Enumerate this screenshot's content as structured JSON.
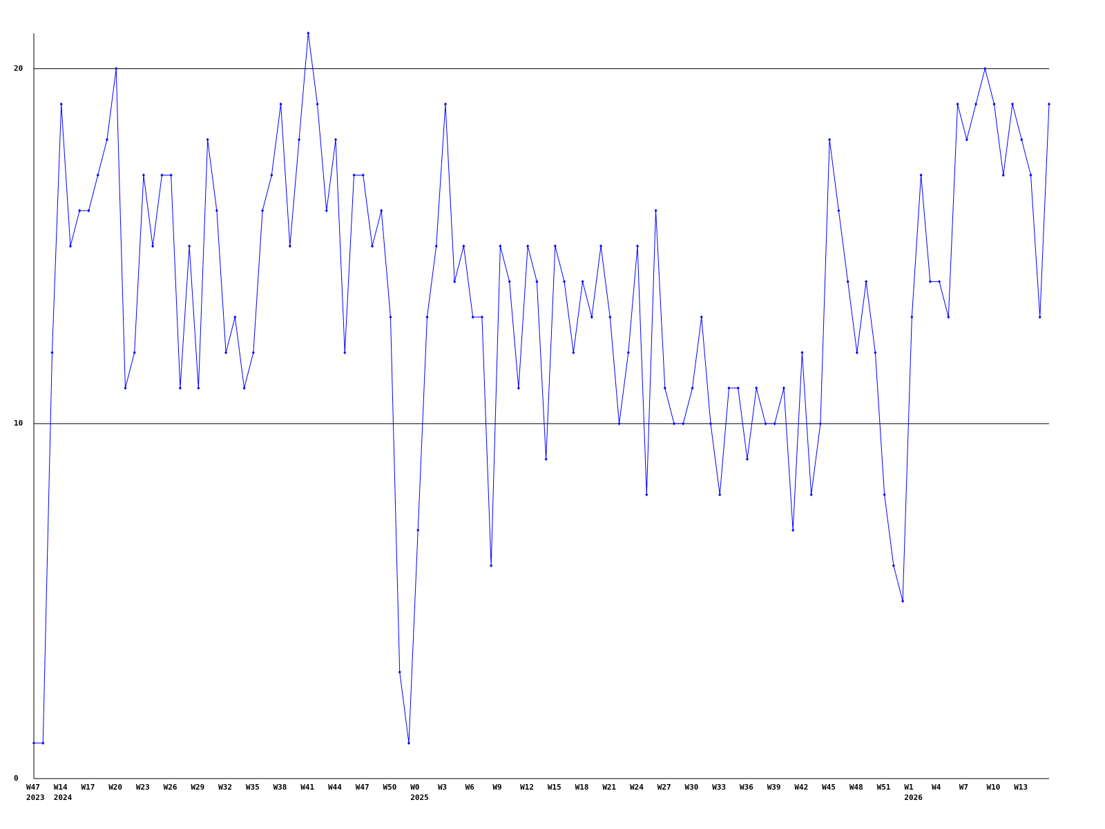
{
  "chart_data": {
    "type": "line",
    "categories": [
      "W47",
      null,
      null,
      "W14",
      null,
      null,
      "W17",
      null,
      null,
      "W20",
      null,
      null,
      "W23",
      null,
      null,
      "W26",
      null,
      null,
      "W29",
      null,
      null,
      "W32",
      null,
      null,
      "W35",
      null,
      null,
      "W38",
      null,
      null,
      "W41",
      null,
      null,
      "W44",
      null,
      null,
      "W47",
      null,
      null,
      "W50",
      null,
      null,
      "W0",
      null,
      null,
      "W3",
      null,
      null,
      "W6",
      null,
      null,
      "W9",
      null,
      null,
      "W12",
      null,
      null,
      "W15",
      null,
      null,
      "W18",
      null,
      null,
      "W21",
      null,
      null,
      "W24",
      null,
      null,
      "W27",
      null,
      null,
      "W30",
      null,
      null,
      "W33",
      null,
      null,
      "W36",
      null,
      null,
      "W39",
      null,
      null,
      "W42",
      null,
      null,
      "W45",
      null,
      null,
      "W48",
      null,
      null,
      "W51",
      null,
      null,
      "W1",
      null,
      null,
      "W4",
      null,
      null,
      "W7",
      null,
      null,
      "W10",
      null,
      null,
      "W13",
      null,
      null,
      null
    ],
    "category_years": [
      "2023",
      null,
      null,
      "2024",
      null,
      null,
      null,
      null,
      null,
      null,
      null,
      null,
      null,
      null,
      null,
      null,
      null,
      null,
      null,
      null,
      null,
      null,
      null,
      null,
      null,
      null,
      null,
      null,
      null,
      null,
      null,
      null,
      null,
      null,
      null,
      null,
      null,
      null,
      null,
      null,
      null,
      null,
      "2025",
      null,
      null,
      null,
      null,
      null,
      null,
      null,
      null,
      null,
      null,
      null,
      null,
      null,
      null,
      null,
      null,
      null,
      null,
      null,
      null,
      null,
      null,
      null,
      null,
      null,
      null,
      null,
      null,
      null,
      null,
      null,
      null,
      null,
      null,
      null,
      null,
      null,
      null,
      null,
      null,
      null,
      null,
      null,
      null,
      null,
      null,
      null,
      null,
      null,
      null,
      null,
      null,
      null,
      "2026",
      null,
      null,
      null,
      null,
      null,
      null,
      null,
      null,
      null,
      null,
      null,
      null,
      null,
      null,
      null
    ],
    "series": [
      {
        "color": "#0000ff",
        "values": [
          1,
          1,
          12,
          19,
          15,
          16,
          16,
          17,
          18,
          20,
          11,
          12,
          17,
          15,
          17,
          17,
          11,
          15,
          11,
          18,
          16,
          12,
          13,
          11,
          12,
          16,
          17,
          19,
          15,
          18,
          21,
          19,
          16,
          18,
          12,
          17,
          17,
          15,
          16,
          13,
          3,
          1,
          7,
          13,
          15,
          19,
          14,
          15,
          13,
          13,
          6,
          15,
          14,
          11,
          15,
          14,
          9,
          15,
          14,
          12,
          14,
          13,
          15,
          13,
          10,
          12,
          15,
          8,
          16,
          11,
          10,
          10,
          11,
          13,
          10,
          8,
          11,
          11,
          9,
          11,
          10,
          10,
          11,
          7,
          12,
          8,
          10,
          18,
          16,
          14,
          12,
          14,
          12,
          8,
          6,
          5,
          13,
          17,
          14,
          14,
          13,
          19,
          18,
          19,
          20,
          19,
          17,
          19,
          18,
          17,
          13,
          19
        ]
      }
    ],
    "ylim": [
      0,
      21
    ],
    "yticks": [
      0,
      10,
      20
    ],
    "grid": true
  }
}
